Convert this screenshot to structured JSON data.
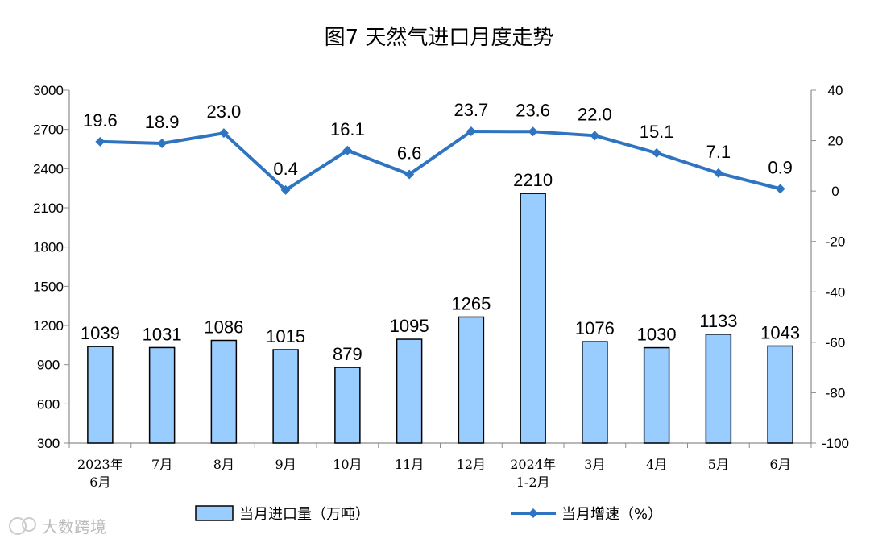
{
  "chart_data": {
    "type": "bar+line",
    "title": "图7  天然气进口月度走势",
    "categories": [
      [
        "2023年",
        "6月"
      ],
      [
        "7月"
      ],
      [
        "8月"
      ],
      [
        "9月"
      ],
      [
        "10月"
      ],
      [
        "11月"
      ],
      [
        "12月"
      ],
      [
        "2024年",
        "1-2月"
      ],
      [
        "3月"
      ],
      [
        "4月"
      ],
      [
        "5月"
      ],
      [
        "6月"
      ]
    ],
    "series": [
      {
        "name": "当月进口量（万吨）",
        "type": "bar",
        "axis": "left",
        "color": "#99ccff",
        "values": [
          1039,
          1031,
          1086,
          1015,
          879,
          1095,
          1265,
          2210,
          1076,
          1030,
          1133,
          1043
        ],
        "labels": [
          "1039",
          "1031",
          "1086",
          "1015",
          "879",
          "1095",
          "1265",
          "2210",
          "1076",
          "1030",
          "1133",
          "1043"
        ]
      },
      {
        "name": "当月增速（%）",
        "type": "line",
        "axis": "right",
        "color": "#2e74c0",
        "values": [
          19.6,
          18.9,
          23.0,
          0.4,
          16.1,
          6.6,
          23.7,
          23.6,
          22.0,
          15.1,
          7.1,
          0.9
        ],
        "labels": [
          "19.6",
          "18.9",
          "23.0",
          "0.4",
          "16.1",
          "6.6",
          "23.7",
          "23.6",
          "22.0",
          "15.1",
          "7.1",
          "0.9"
        ]
      }
    ],
    "y_left": {
      "range": [
        300,
        3000
      ],
      "ticks": [
        "300",
        "600",
        "900",
        "1200",
        "1500",
        "1800",
        "2100",
        "2400",
        "2700",
        "3000"
      ]
    },
    "y_right": {
      "range": [
        -100,
        40
      ],
      "ticks": [
        "-100",
        "-80",
        "-60",
        "-40",
        "-20",
        "0",
        "20",
        "40"
      ]
    },
    "grid": false,
    "legend_position": "bottom"
  },
  "watermark": "大数跨境"
}
